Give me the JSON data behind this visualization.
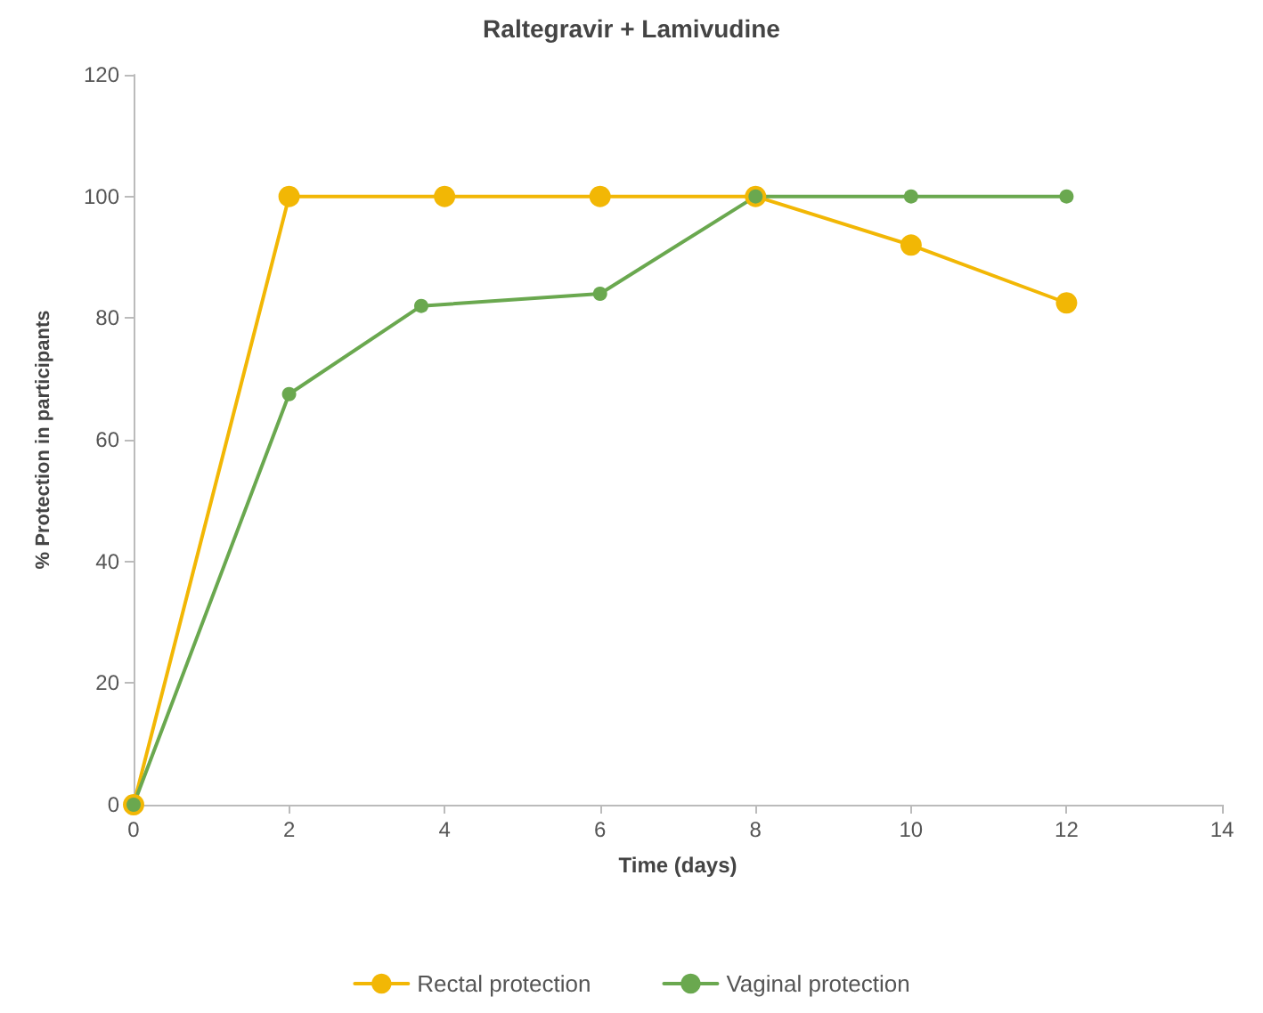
{
  "chart_data": {
    "type": "line",
    "title": "Raltegravir + Lamivudine",
    "xlabel": "Time (days)",
    "ylabel": "% Protection in participants",
    "xlim": [
      0,
      14
    ],
    "xticks": [
      0,
      2,
      4,
      6,
      8,
      10,
      12,
      14
    ],
    "ylim": [
      0,
      120
    ],
    "yticks": [
      0,
      20,
      40,
      60,
      80,
      100,
      120
    ],
    "grid": false,
    "legend": "bottom",
    "marker": "circle",
    "line_style": "solid",
    "series": [
      {
        "name": "Rectal protection",
        "color": "#f2b705",
        "x": [
          0,
          2,
          4,
          6,
          8,
          10,
          12
        ],
        "values": [
          0,
          100,
          100,
          100,
          100,
          92,
          82.5
        ]
      },
      {
        "name": "Vaginal protection",
        "color": "#6aa84f",
        "x": [
          0,
          2,
          3.7,
          6,
          8,
          10,
          12
        ],
        "values": [
          0,
          67.5,
          82,
          84,
          100,
          100,
          100
        ]
      }
    ]
  }
}
